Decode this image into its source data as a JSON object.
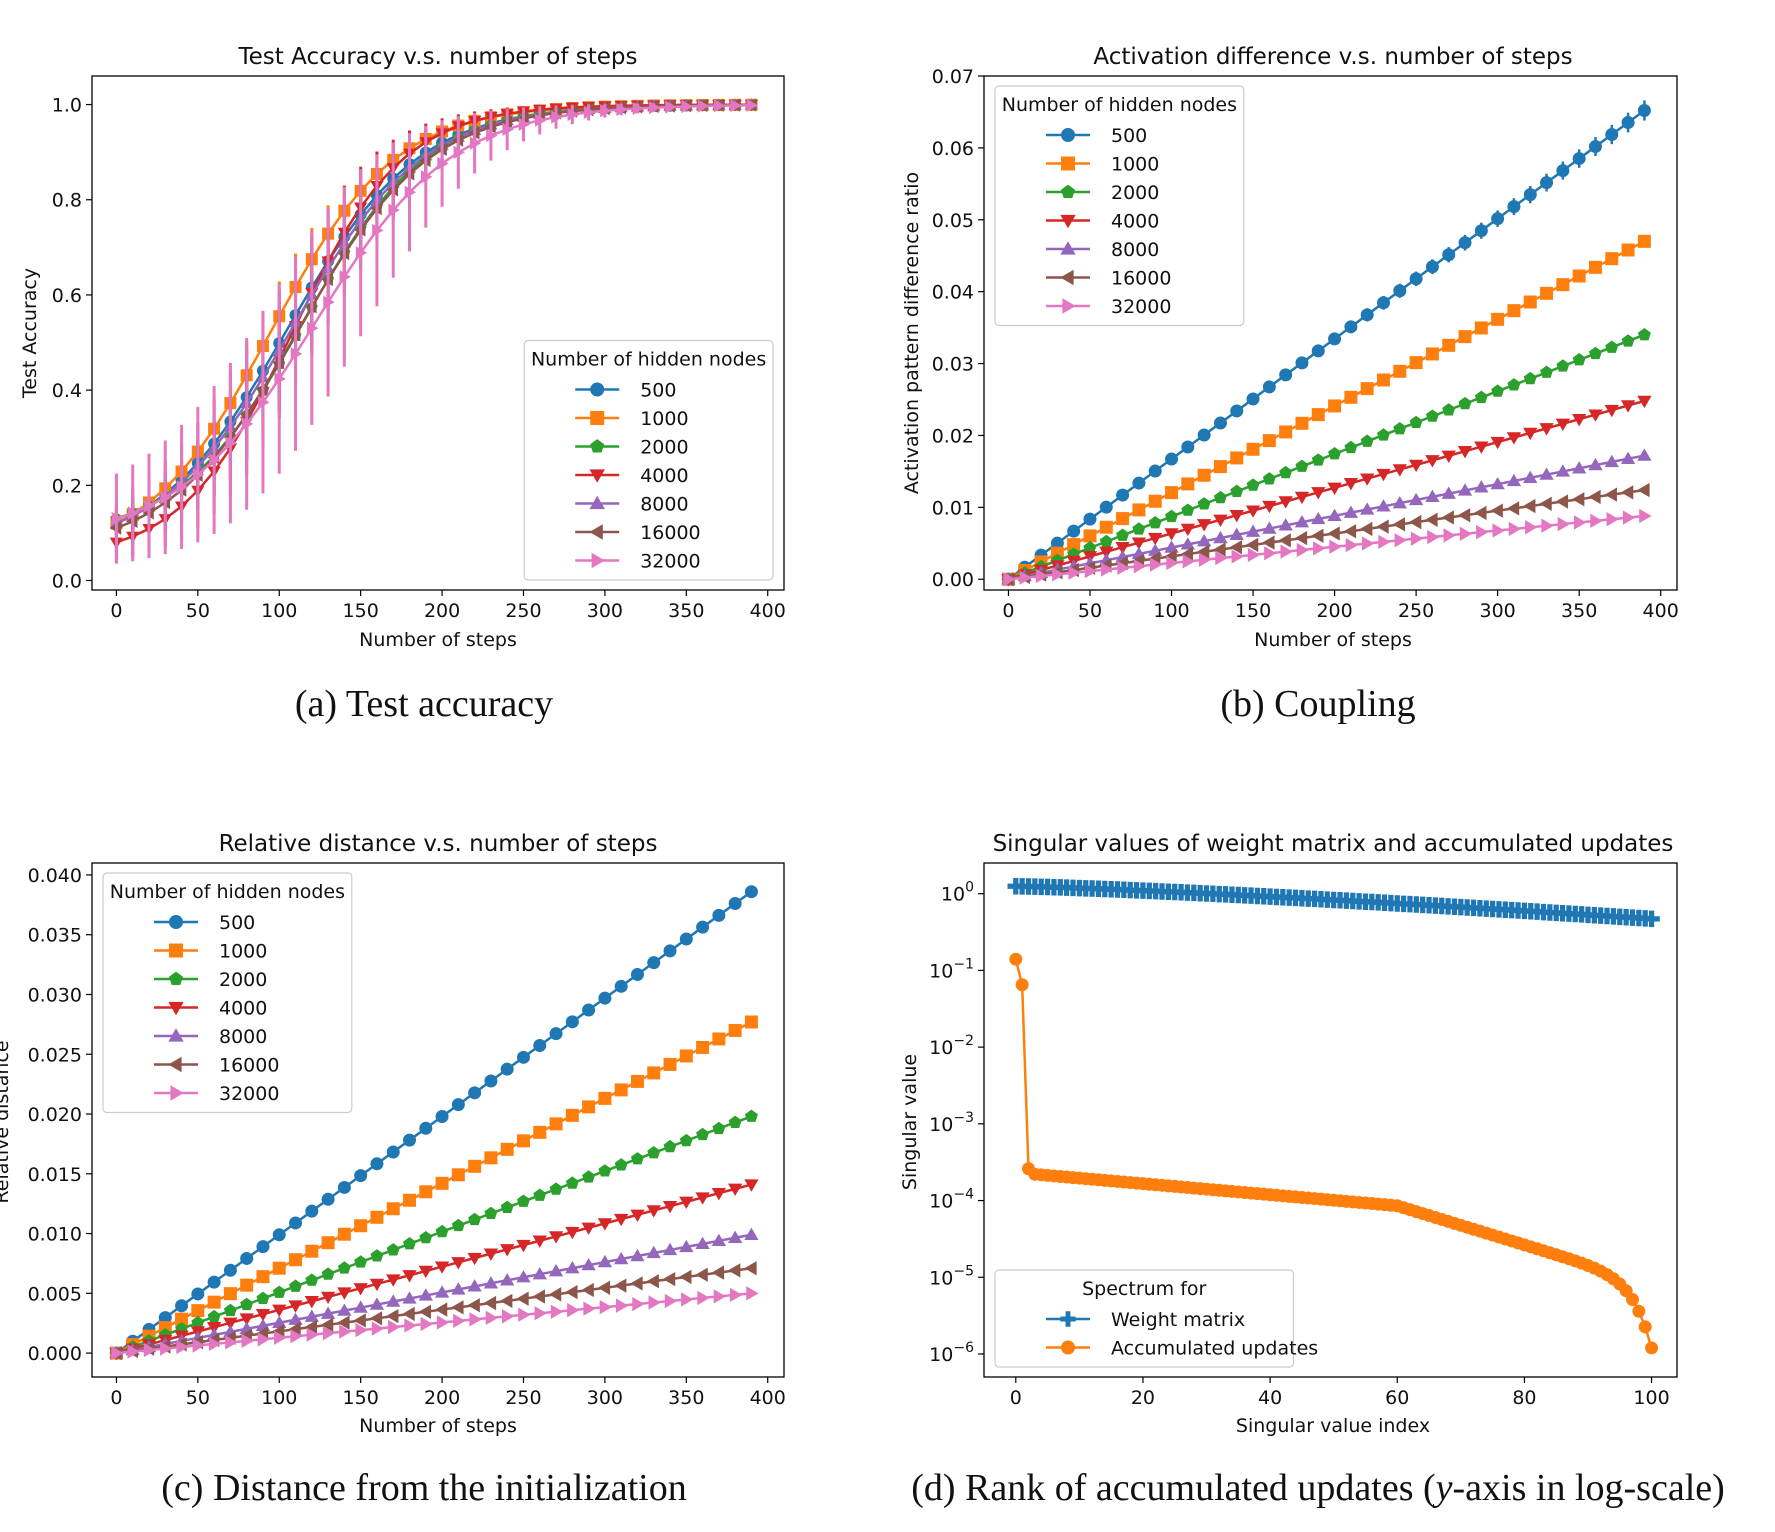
{
  "series_colors": [
    "#1f77b4",
    "#ff7f0e",
    "#2ca02c",
    "#d62728",
    "#9467bd",
    "#8c564b",
    "#e377c2"
  ],
  "chart_data": [
    {
      "id": "a",
      "type": "line",
      "title": "Test Accuracy v.s. number of steps",
      "xlabel": "Number of steps",
      "ylabel": "Test Accuracy",
      "xlim": [
        -15,
        410
      ],
      "ylim": [
        -0.02,
        1.06
      ],
      "xticks": [
        "0",
        "50",
        "100",
        "150",
        "200",
        "250",
        "300",
        "350",
        "400"
      ],
      "yticks": [
        "0.0",
        "0.2",
        "0.4",
        "0.6",
        "0.8",
        "1.0"
      ],
      "legend_title": "Number of hidden nodes",
      "legend_position": "lower right",
      "x_step": 10,
      "x_max": 390,
      "series": [
        {
          "name": "500",
          "marker": "circle",
          "midpoint": 105,
          "scale": 40,
          "start": 0.12,
          "err": 0.05
        },
        {
          "name": "1000",
          "marker": "square",
          "midpoint": 95,
          "scale": 38,
          "start": 0.12,
          "err": 0.07
        },
        {
          "name": "2000",
          "marker": "pentagon",
          "midpoint": 115,
          "scale": 38,
          "start": 0.13,
          "err": 0.06
        },
        {
          "name": "4000",
          "marker": "triangle-down",
          "midpoint": 108,
          "scale": 34,
          "start": 0.08,
          "err": 0.12
        },
        {
          "name": "8000",
          "marker": "triangle-up",
          "midpoint": 108,
          "scale": 40,
          "start": 0.12,
          "err": 0.12
        },
        {
          "name": "16000",
          "marker": "triangle-left",
          "midpoint": 112,
          "scale": 40,
          "start": 0.11,
          "err": 0.1
        },
        {
          "name": "32000",
          "marker": "triangle-right",
          "midpoint": 122,
          "scale": 42,
          "start": 0.13,
          "err": 0.2
        }
      ]
    },
    {
      "id": "b",
      "type": "line",
      "title": "Activation difference v.s. number of steps",
      "xlabel": "Number of steps",
      "ylabel": "Activation pattern difference ratio",
      "xlim": [
        -15,
        410
      ],
      "ylim": [
        -0.0015,
        0.07
      ],
      "xticks": [
        "0",
        "50",
        "100",
        "150",
        "200",
        "250",
        "300",
        "350",
        "400"
      ],
      "yticks": [
        "0.00",
        "0.01",
        "0.02",
        "0.03",
        "0.04",
        "0.05",
        "0.06",
        "0.07"
      ],
      "legend_title": "Number of hidden nodes",
      "legend_position": "upper left",
      "x_step": 10,
      "x_max": 390,
      "series": [
        {
          "name": "500",
          "marker": "circle",
          "final": 0.0652
        },
        {
          "name": "1000",
          "marker": "square",
          "final": 0.047
        },
        {
          "name": "2000",
          "marker": "pentagon",
          "final": 0.034
        },
        {
          "name": "4000",
          "marker": "triangle-down",
          "final": 0.0248
        },
        {
          "name": "8000",
          "marker": "triangle-up",
          "final": 0.0172
        },
        {
          "name": "16000",
          "marker": "triangle-left",
          "final": 0.0124
        },
        {
          "name": "32000",
          "marker": "triangle-right",
          "final": 0.0088
        }
      ]
    },
    {
      "id": "c",
      "type": "line",
      "title": "Relative distance v.s. number of steps",
      "xlabel": "Number of steps",
      "ylabel": "Relative distance",
      "xlim": [
        -15,
        410
      ],
      "ylim": [
        -0.002,
        0.041
      ],
      "xticks": [
        "0",
        "50",
        "100",
        "150",
        "200",
        "250",
        "300",
        "350",
        "400"
      ],
      "yticks": [
        "0.000",
        "0.005",
        "0.010",
        "0.015",
        "0.020",
        "0.025",
        "0.030",
        "0.035",
        "0.040"
      ],
      "legend_title": "Number of hidden nodes",
      "legend_position": "upper left",
      "x_step": 10,
      "x_max": 390,
      "series": [
        {
          "name": "500",
          "marker": "circle",
          "final": 0.0386
        },
        {
          "name": "1000",
          "marker": "square",
          "final": 0.0277
        },
        {
          "name": "2000",
          "marker": "pentagon",
          "final": 0.0198
        },
        {
          "name": "4000",
          "marker": "triangle-down",
          "final": 0.0141
        },
        {
          "name": "8000",
          "marker": "triangle-up",
          "final": 0.0099
        },
        {
          "name": "16000",
          "marker": "triangle-left",
          "final": 0.0071
        },
        {
          "name": "32000",
          "marker": "triangle-right",
          "final": 0.005
        }
      ]
    },
    {
      "id": "d",
      "type": "line",
      "title": "Singular values of weight matrix and accumulated updates",
      "xlabel": "Singular value index",
      "ylabel": "Singular value",
      "xlim": [
        -5,
        104
      ],
      "ylim": [
        -6.3,
        0.4
      ],
      "y_scale": "log",
      "xticks": [
        "0",
        "20",
        "40",
        "60",
        "80",
        "100"
      ],
      "yticks": [
        "10^0",
        "10^-1",
        "10^-2",
        "10^-3",
        "10^-4",
        "10^-5",
        "10^-6"
      ],
      "legend_title": "Spectrum for",
      "legend_position": "lower left",
      "series": [
        {
          "name": "Weight matrix",
          "marker": "plus",
          "color": "#1f77b4",
          "start": 1.25,
          "end": 0.47
        },
        {
          "name": "Accumulated updates",
          "marker": "circle",
          "color": "#ff7f0e",
          "head": [
            0.14,
            0.065,
            0.00026
          ],
          "body_start": 0.00022,
          "body_mid": 8.55e-05,
          "end": 1.2e-06
        }
      ]
    }
  ],
  "captions": {
    "a": "(a) Test accuracy",
    "b": "(b) Coupling",
    "c": "(c) Distance from the initialization",
    "d_prefix": "(d) Rank of accumulated updates (",
    "d_var": "y",
    "d_suffix": "-axis in log-scale)"
  }
}
